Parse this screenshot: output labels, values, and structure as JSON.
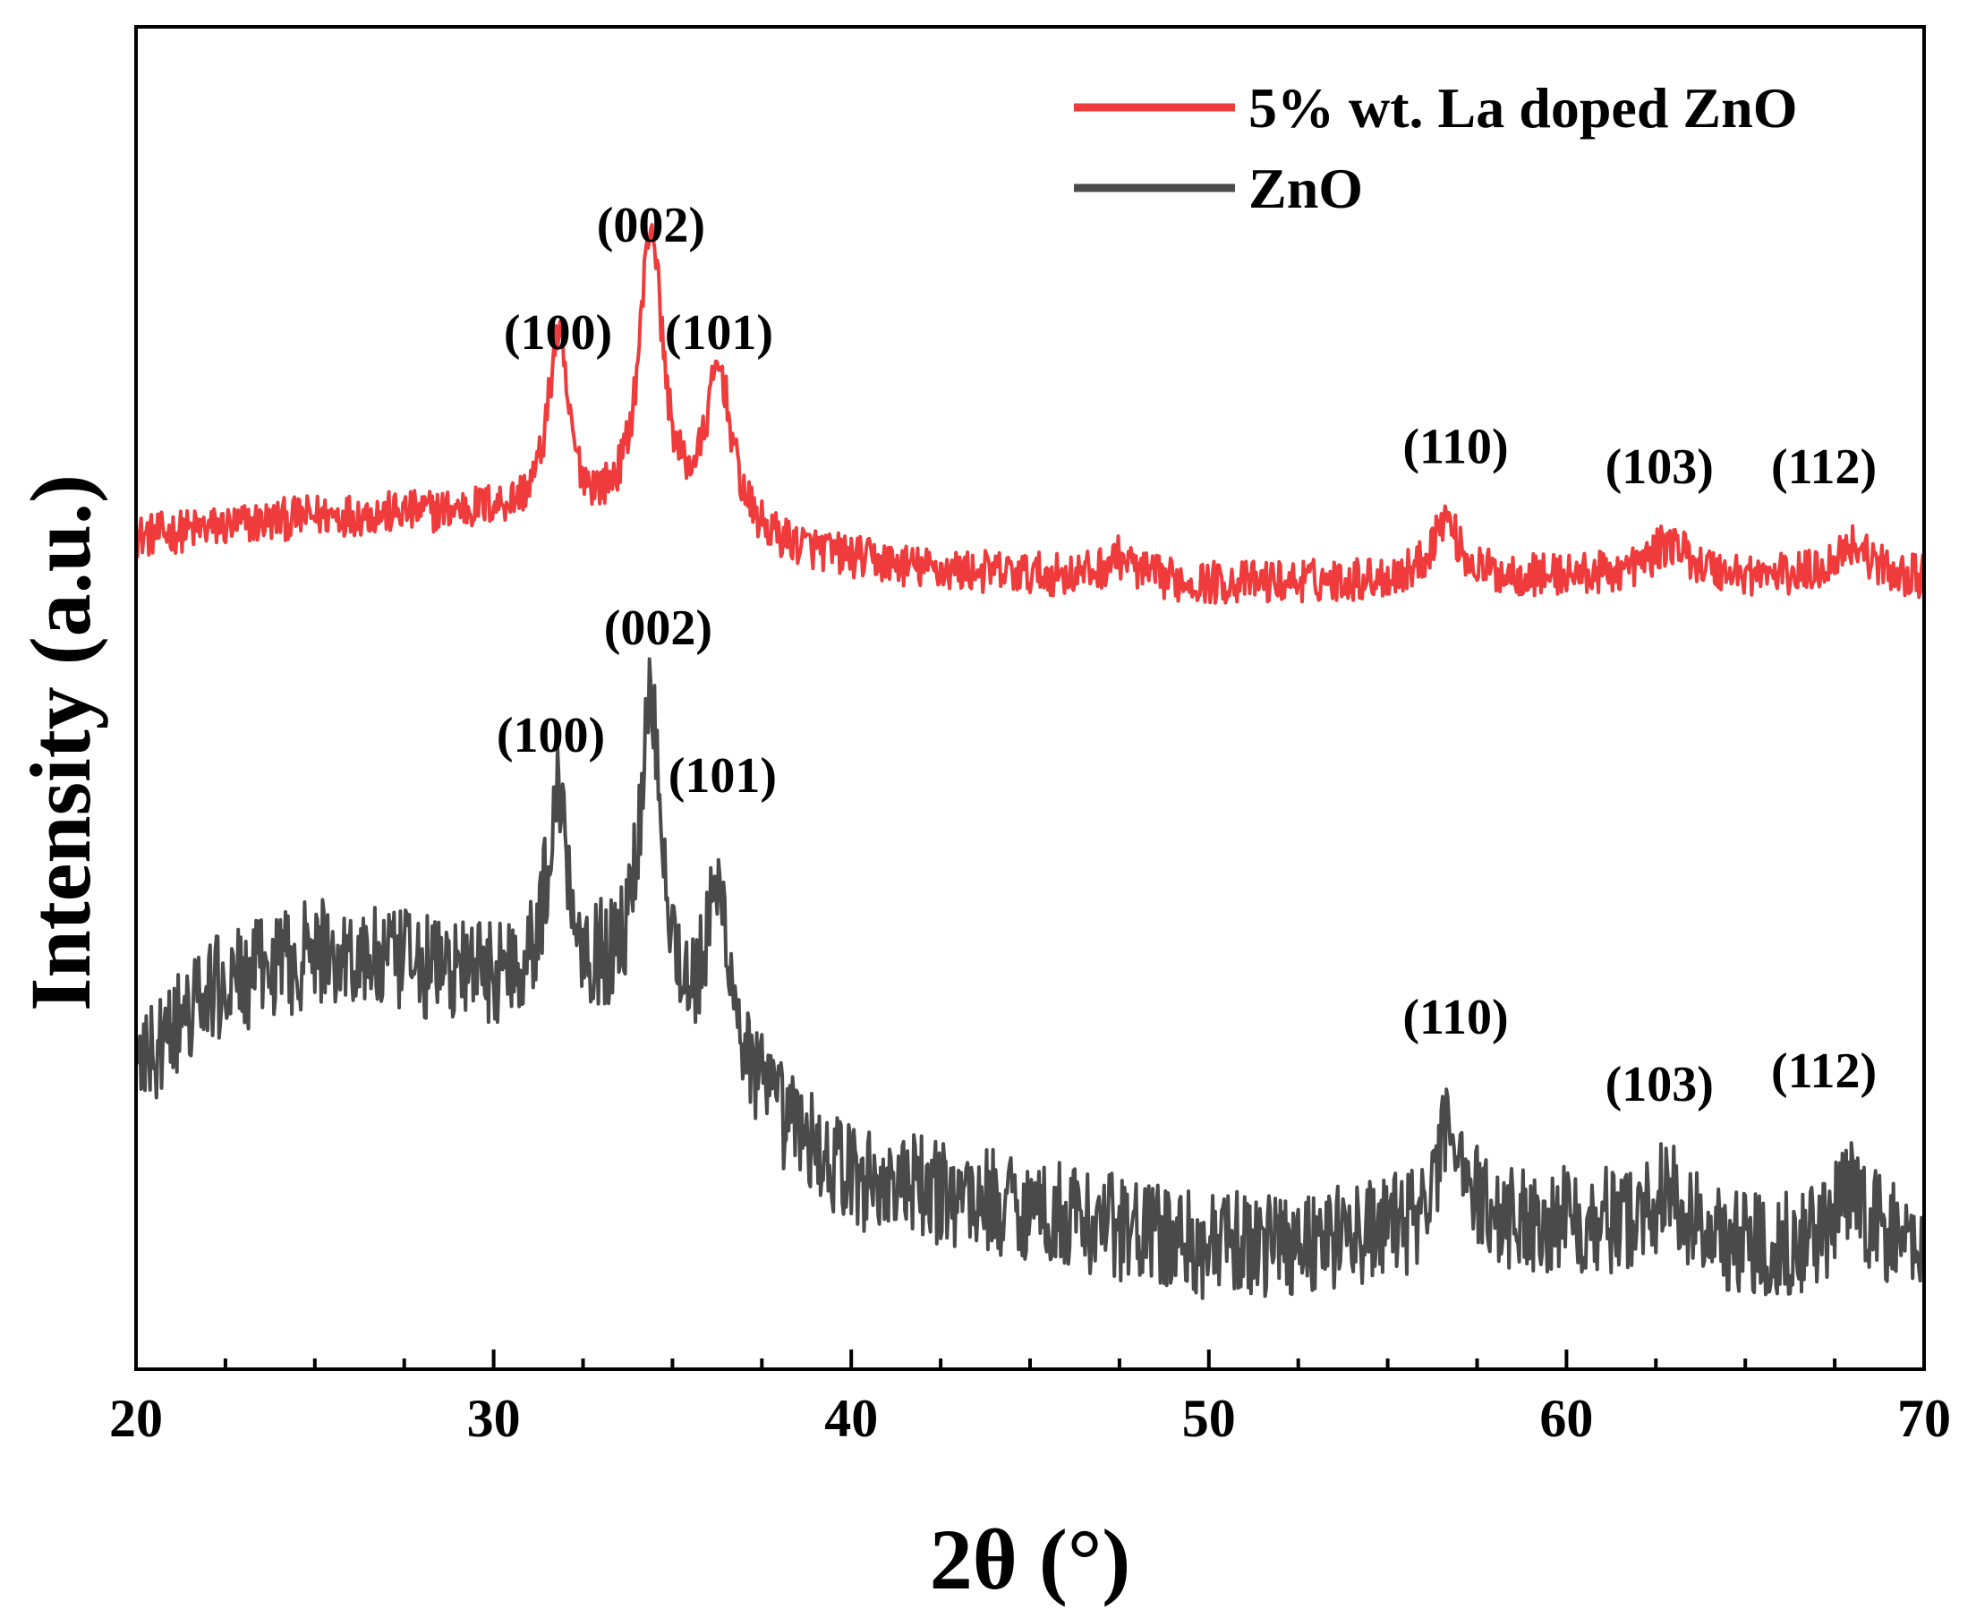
{
  "colors": {
    "doped": "#ef3b3b",
    "pure": "#4a4a4a",
    "axis": "#000000"
  },
  "chart_data": {
    "type": "line",
    "title": "",
    "xlabel": "2θ (°)",
    "ylabel": "Intensity (a.u.)",
    "xlim": [
      20,
      70
    ],
    "ylim": [
      0,
      100
    ],
    "xticks": [
      20,
      30,
      40,
      50,
      60,
      70
    ],
    "xtick_labels": [
      "20",
      "30",
      "40",
      "50",
      "60",
      "70"
    ],
    "yticks_shown": false,
    "legend": {
      "position": "top-right",
      "entries": [
        "5% wt. La doped ZnO",
        "ZnO"
      ]
    },
    "series": [
      {
        "key": "doped",
        "name": "5% wt. La doped ZnO",
        "color": "#ef3b3b",
        "baseline": 62,
        "noise": 1.6,
        "peaks": [
          {
            "x": 31.8,
            "height": 13,
            "width": 0.35
          },
          {
            "x": 34.4,
            "height": 22,
            "width": 0.4
          },
          {
            "x": 36.3,
            "height": 12,
            "width": 0.45
          },
          {
            "x": 47.5,
            "height": 1.6,
            "width": 0.5
          },
          {
            "x": 56.6,
            "height": 4.5,
            "width": 0.45
          },
          {
            "x": 62.9,
            "height": 2.5,
            "width": 0.7
          },
          {
            "x": 68.0,
            "height": 2.6,
            "width": 0.6
          }
        ],
        "bumps": [
          {
            "x": 20,
            "y": 62
          },
          {
            "x": 25,
            "y": 63.5
          },
          {
            "x": 30,
            "y": 63.8
          },
          {
            "x": 33,
            "y": 63
          },
          {
            "x": 38,
            "y": 61
          },
          {
            "x": 42,
            "y": 59.5
          },
          {
            "x": 50,
            "y": 58.5
          },
          {
            "x": 60,
            "y": 59
          },
          {
            "x": 70,
            "y": 58.8
          }
        ],
        "peak_labels": [
          {
            "text": "(100)",
            "x": 31.8,
            "y": 76
          },
          {
            "text": "(002)",
            "x": 34.4,
            "y": 84
          },
          {
            "text": "(101)",
            "x": 36.3,
            "y": 76
          },
          {
            "text": "(110)",
            "x": 56.9,
            "y": 67.5
          },
          {
            "text": "(103)",
            "x": 62.6,
            "y": 66
          },
          {
            "text": "(112)",
            "x": 67.2,
            "y": 66
          }
        ]
      },
      {
        "key": "pure",
        "name": "ZnO",
        "color": "#4a4a4a",
        "baseline": 22,
        "noise": 4,
        "peaks": [
          {
            "x": 31.8,
            "height": 14,
            "width": 0.35
          },
          {
            "x": 34.4,
            "height": 24,
            "width": 0.4
          },
          {
            "x": 36.3,
            "height": 13,
            "width": 0.45
          },
          {
            "x": 56.8,
            "height": 8,
            "width": 0.45
          },
          {
            "x": 62.8,
            "height": 3,
            "width": 0.7
          },
          {
            "x": 68.0,
            "height": 4,
            "width": 0.6
          }
        ],
        "bumps": [
          {
            "x": 20,
            "y": 22
          },
          {
            "x": 22,
            "y": 28
          },
          {
            "x": 25,
            "y": 31
          },
          {
            "x": 30,
            "y": 29
          },
          {
            "x": 33,
            "y": 28
          },
          {
            "x": 37,
            "y": 20
          },
          {
            "x": 40,
            "y": 14
          },
          {
            "x": 45,
            "y": 12
          },
          {
            "x": 50,
            "y": 9
          },
          {
            "x": 55,
            "y": 10
          },
          {
            "x": 60,
            "y": 11
          },
          {
            "x": 65,
            "y": 9
          },
          {
            "x": 70,
            "y": 9
          }
        ],
        "peak_labels": [
          {
            "text": "(100)",
            "x": 31.6,
            "y": 46
          },
          {
            "text": "(002)",
            "x": 34.6,
            "y": 54
          },
          {
            "text": "(101)",
            "x": 36.4,
            "y": 43
          },
          {
            "text": "(110)",
            "x": 56.9,
            "y": 25
          },
          {
            "text": "(103)",
            "x": 62.6,
            "y": 20
          },
          {
            "text": "(112)",
            "x": 67.2,
            "y": 21
          }
        ]
      }
    ]
  }
}
